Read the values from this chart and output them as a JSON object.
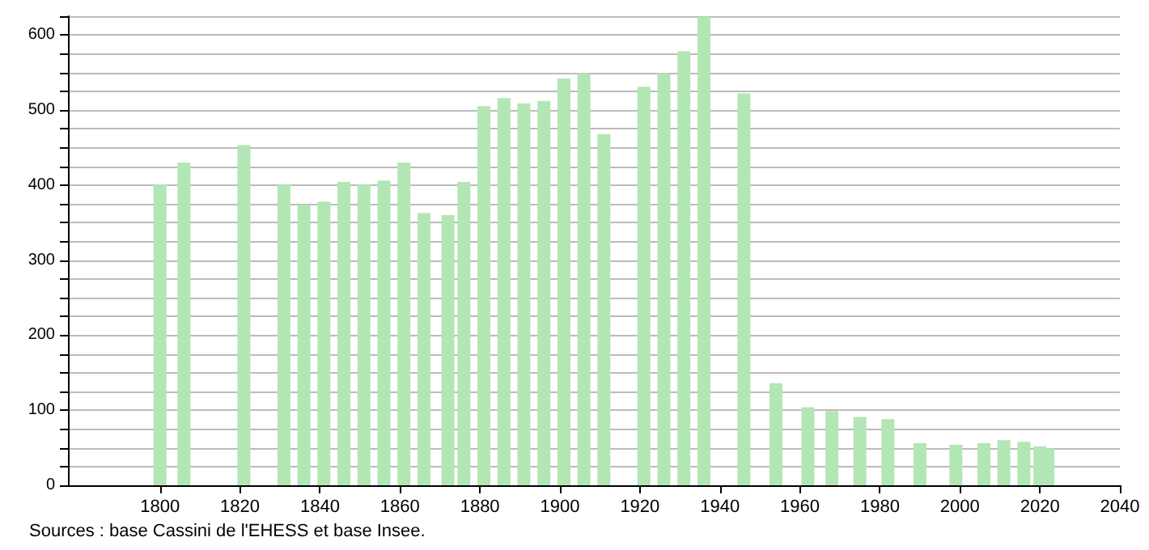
{
  "chart_data": {
    "type": "bar",
    "x": [
      1800,
      1806,
      1821,
      1831,
      1836,
      1841,
      1846,
      1851,
      1856,
      1861,
      1866,
      1872,
      1876,
      1881,
      1886,
      1891,
      1896,
      1901,
      1906,
      1911,
      1921,
      1926,
      1931,
      1936,
      1946,
      1954,
      1962,
      1968,
      1975,
      1982,
      1990,
      1999,
      2006,
      2011,
      2016,
      2020,
      2022
    ],
    "values": [
      401,
      430,
      453,
      401,
      374,
      378,
      404,
      401,
      406,
      430,
      363,
      360,
      404,
      505,
      516,
      509,
      512,
      542,
      549,
      468,
      531,
      549,
      578,
      624,
      522,
      136,
      104,
      99,
      91,
      88,
      56,
      54,
      56,
      60,
      58,
      52,
      49
    ],
    "color": "#b3e6b5",
    "xlim": [
      1777,
      2040
    ],
    "xticks": [
      1800,
      1820,
      1840,
      1860,
      1880,
      1900,
      1920,
      1940,
      1960,
      1980,
      2000,
      2020,
      2040
    ],
    "ylim": [
      0,
      625
    ],
    "yticks": [
      0,
      {
        "value": 25,
        "label": null
      },
      {
        "value": 50,
        "label": null
      },
      {
        "value": 75,
        "label": null
      },
      100,
      {
        "value": 125,
        "label": null
      },
      {
        "value": 150,
        "label": null
      },
      {
        "value": 175,
        "label": null
      },
      200,
      {
        "value": 225,
        "label": null
      },
      {
        "value": 250,
        "label": null
      },
      {
        "value": 275,
        "label": null
      },
      300,
      {
        "value": 325,
        "label": null
      },
      {
        "value": 350,
        "label": null
      },
      {
        "value": 375,
        "label": null
      },
      400,
      {
        "value": 425,
        "label": null
      },
      {
        "value": 450,
        "label": null
      },
      {
        "value": 475,
        "label": null
      },
      500,
      {
        "value": 525,
        "label": null
      },
      {
        "value": 550,
        "label": null
      },
      {
        "value": 575,
        "label": null
      },
      600,
      {
        "value": 625,
        "label": null
      }
    ],
    "grid": "y",
    "annotations": [
      "Sources : base Cassini de l'EHESS et base Insee."
    ]
  }
}
